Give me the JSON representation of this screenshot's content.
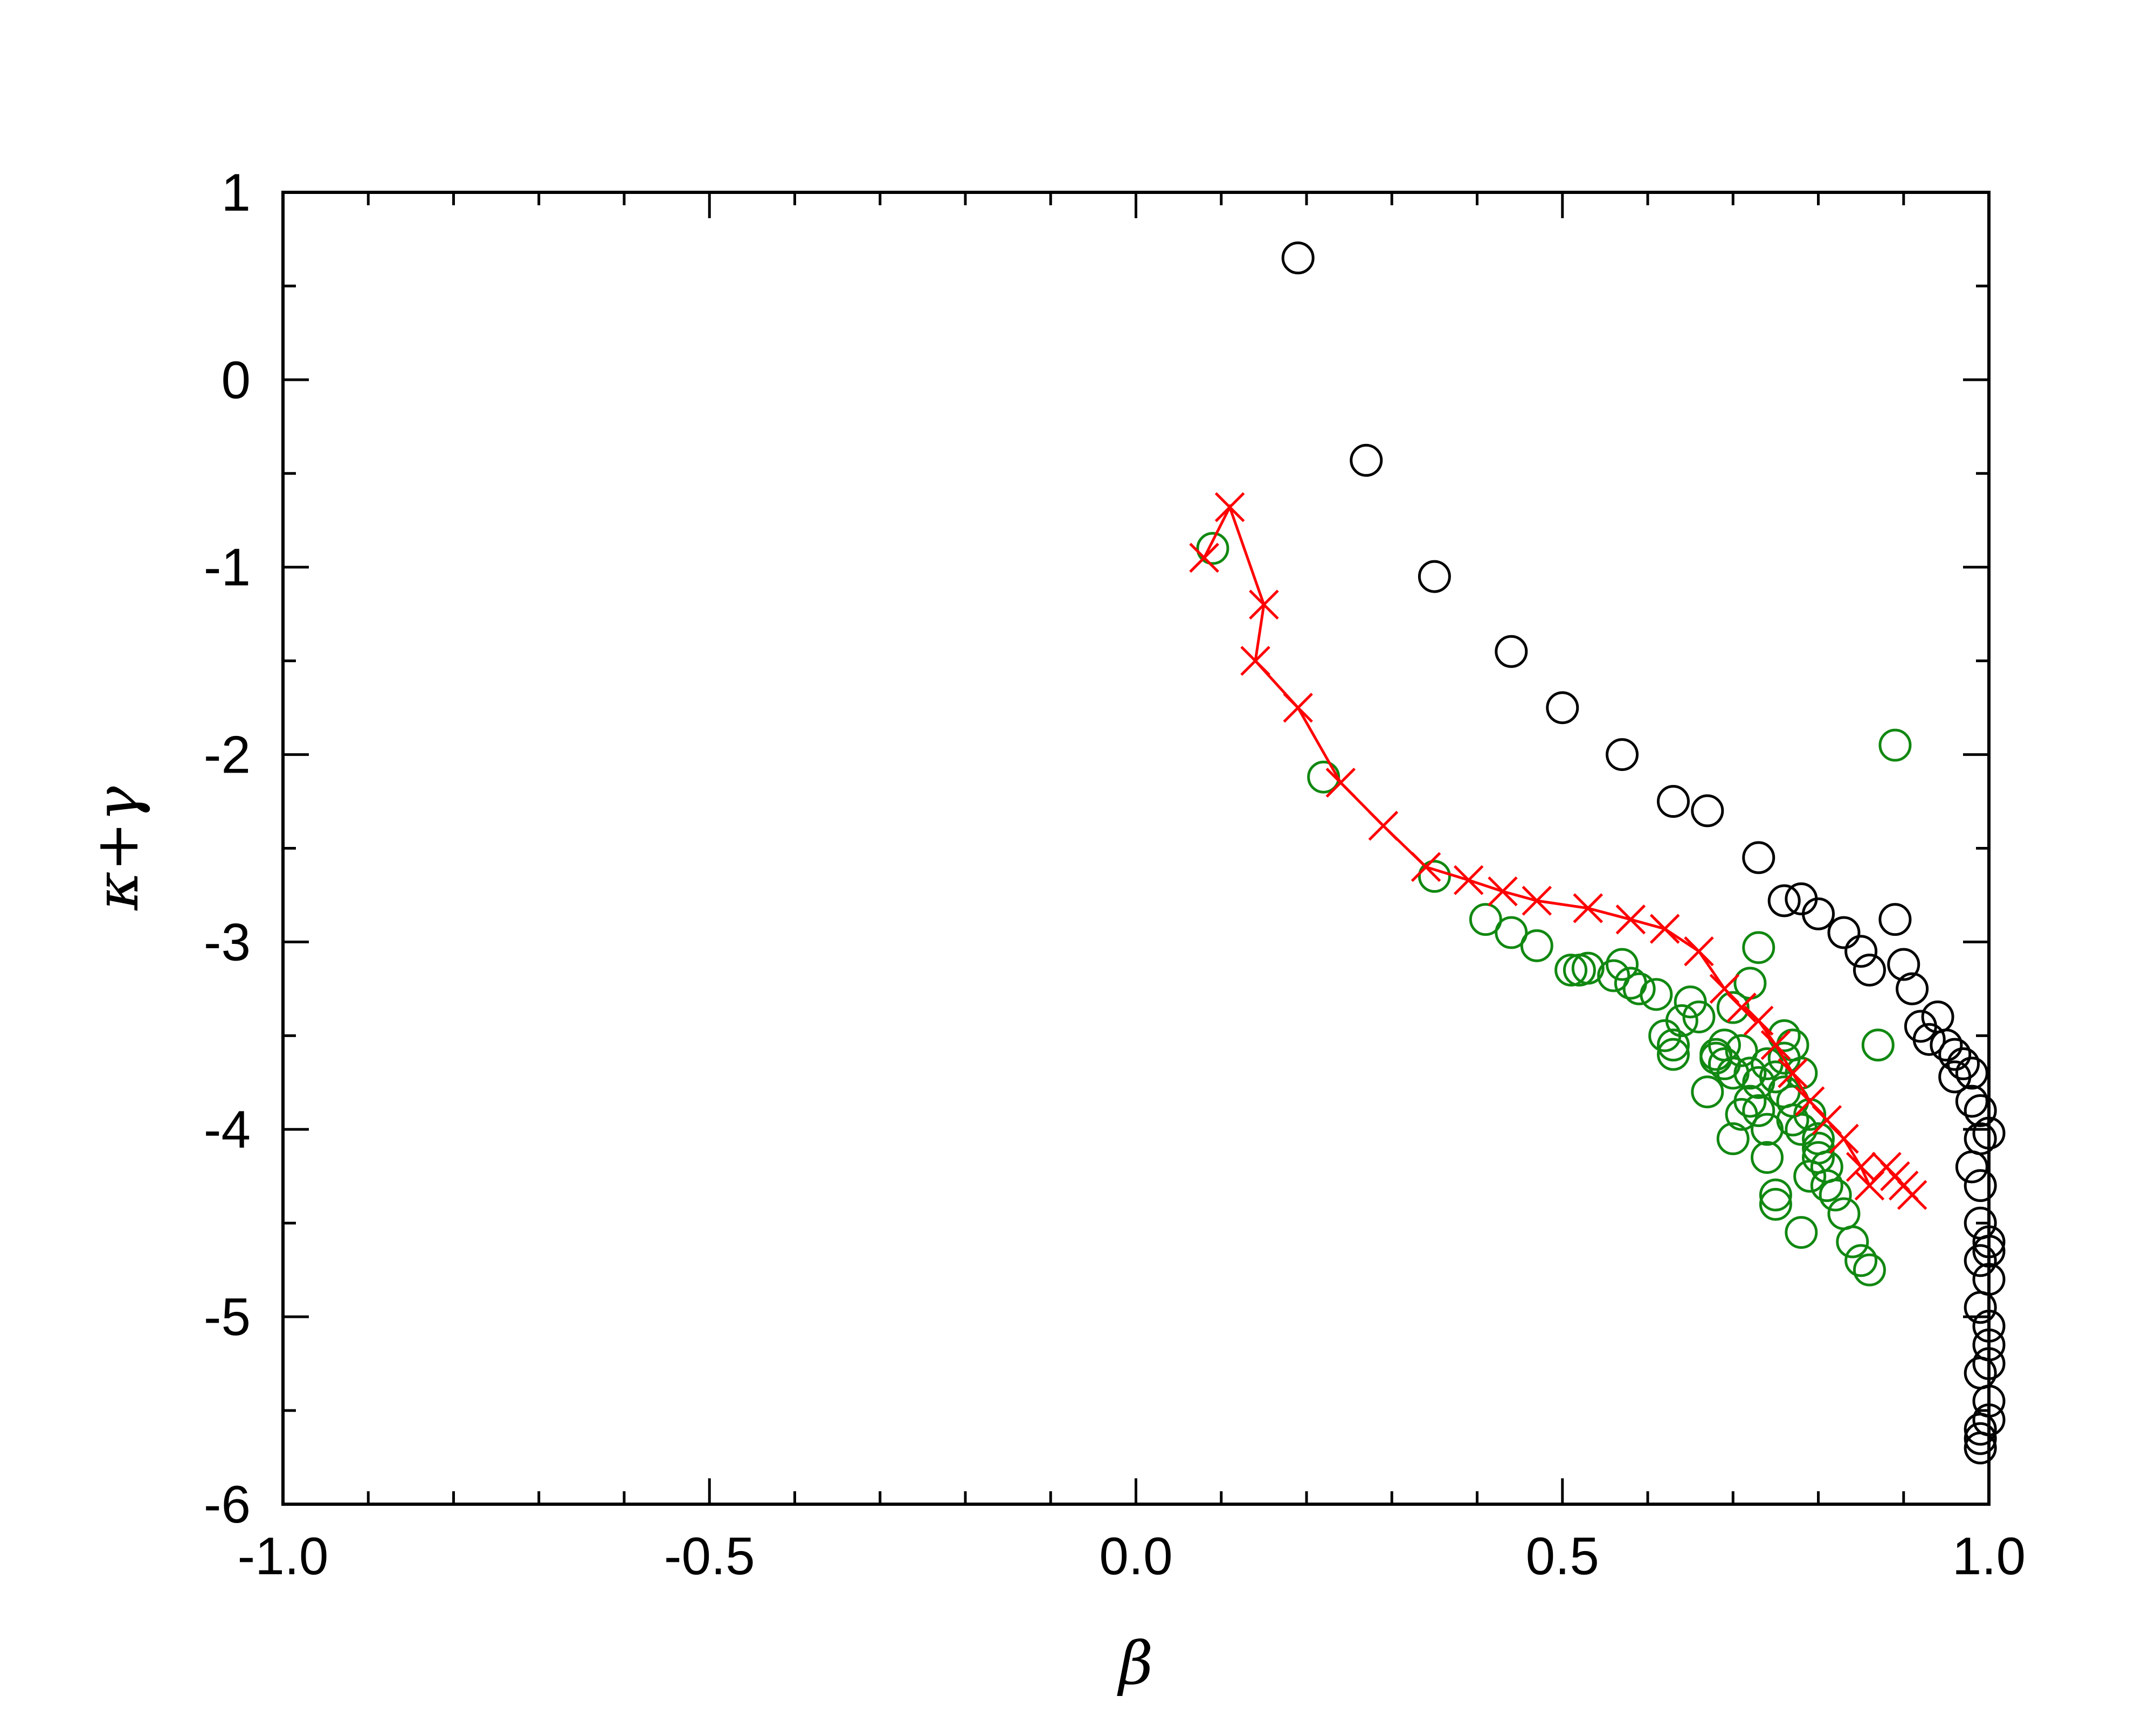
{
  "chart_data": {
    "type": "scatter",
    "title": "",
    "xlabel": "β",
    "ylabel": "κ+γ",
    "xlim": [
      -1.0,
      1.0
    ],
    "ylim": [
      -6,
      1
    ],
    "xticks": [
      -1.0,
      -0.5,
      0.0,
      0.5,
      1.0
    ],
    "xtick_labels": [
      "-1.0",
      "-0.5",
      "0.0",
      "0.5",
      "1.0"
    ],
    "yticks": [
      1,
      0,
      -1,
      -2,
      -3,
      -4,
      -5,
      -6
    ],
    "ytick_labels": [
      "1",
      "0",
      "-1",
      "-2",
      "-3",
      "-4",
      "-5",
      "-6"
    ],
    "x_minor_step": 0.1,
    "y_minor_step": 0.5,
    "grid": false,
    "legend": "none",
    "series": [
      {
        "marker": "circle",
        "color": "#000000",
        "line": false,
        "x": [
          0.19,
          0.27,
          0.35,
          0.44,
          0.5,
          0.57,
          0.63,
          0.67,
          0.73,
          0.76,
          0.78,
          0.8,
          0.83,
          0.85,
          0.86,
          0.89,
          0.9,
          0.91,
          0.92,
          0.94,
          0.93,
          0.95,
          0.96,
          0.97,
          0.96,
          0.98,
          0.98,
          0.99,
          0.99,
          0.98,
          0.99,
          0.99,
          1.0,
          0.99,
          1.0,
          1.0,
          0.99,
          1.0,
          1.0,
          1.0,
          0.99,
          1.0,
          1.0,
          0.99,
          0.99,
          0.99,
          1.0
        ],
        "y": [
          0.65,
          -0.43,
          -1.05,
          -1.45,
          -1.75,
          -2.0,
          -2.25,
          -2.3,
          -2.55,
          -2.78,
          -2.77,
          -2.85,
          -2.95,
          -3.05,
          -3.15,
          -2.88,
          -3.12,
          -3.25,
          -3.45,
          -3.4,
          -3.52,
          -3.55,
          -3.6,
          -3.65,
          -3.72,
          -3.7,
          -3.85,
          -3.9,
          -4.05,
          -4.2,
          -4.3,
          -4.5,
          -4.6,
          -4.7,
          -4.65,
          -4.8,
          -4.95,
          -5.05,
          -5.15,
          -5.25,
          -5.3,
          -5.45,
          -5.55,
          -5.6,
          -5.65,
          -5.7,
          -4.02
        ]
      },
      {
        "marker": "circle",
        "color": "#118811",
        "line": false,
        "x": [
          0.09,
          0.22,
          0.35,
          0.41,
          0.44,
          0.47,
          0.51,
          0.52,
          0.53,
          0.56,
          0.57,
          0.58,
          0.59,
          0.61,
          0.62,
          0.63,
          0.63,
          0.64,
          0.65,
          0.66,
          0.67,
          0.68,
          0.68,
          0.69,
          0.69,
          0.7,
          0.7,
          0.71,
          0.71,
          0.72,
          0.72,
          0.73,
          0.73,
          0.74,
          0.74,
          0.75,
          0.75,
          0.76,
          0.76,
          0.77,
          0.77,
          0.78,
          0.78,
          0.79,
          0.79,
          0.8,
          0.8,
          0.81,
          0.81,
          0.82,
          0.83,
          0.84,
          0.85,
          0.86,
          0.87,
          0.89,
          0.73,
          0.72,
          0.75,
          0.78,
          0.74,
          0.77,
          0.8,
          0.7,
          0.76
        ],
        "y": [
          -0.9,
          -2.12,
          -2.65,
          -2.88,
          -2.95,
          -3.02,
          -3.15,
          -3.15,
          -3.14,
          -3.18,
          -3.12,
          -3.22,
          -3.25,
          -3.28,
          -3.5,
          -3.55,
          -3.6,
          -3.42,
          -3.32,
          -3.4,
          -3.8,
          -3.62,
          -3.6,
          -3.55,
          -3.65,
          -3.7,
          -4.05,
          -3.58,
          -3.92,
          -3.7,
          -3.85,
          -3.75,
          -3.9,
          -3.65,
          -4.15,
          -3.72,
          -4.35,
          -3.62,
          -3.8,
          -3.55,
          -3.95,
          -4.0,
          -4.55,
          -3.92,
          -4.25,
          -4.05,
          -4.15,
          -4.2,
          -4.3,
          -4.35,
          -4.45,
          -4.6,
          -4.7,
          -4.75,
          -3.55,
          -1.95,
          -3.03,
          -3.22,
          -4.4,
          -3.7,
          -4.0,
          -3.85,
          -4.1,
          -3.35,
          -3.5
        ]
      },
      {
        "marker": "x",
        "color": "#ff0000",
        "line": true,
        "x": [
          0.08,
          0.11,
          0.15,
          0.14,
          0.19,
          0.24,
          0.29,
          0.34,
          0.39,
          0.43,
          0.47,
          0.53,
          0.58,
          0.62,
          0.66,
          0.69,
          0.71,
          0.73,
          0.75,
          0.77,
          0.79,
          0.81,
          0.83,
          0.85,
          0.86,
          0.88,
          0.89,
          0.9,
          0.91
        ],
        "y": [
          -0.95,
          -0.68,
          -1.2,
          -1.5,
          -1.75,
          -2.15,
          -2.38,
          -2.6,
          -2.67,
          -2.73,
          -2.78,
          -2.82,
          -2.88,
          -2.93,
          -3.05,
          -3.25,
          -3.35,
          -3.42,
          -3.55,
          -3.7,
          -3.85,
          -3.95,
          -4.05,
          -4.2,
          -4.3,
          -4.2,
          -4.25,
          -4.3,
          -4.35
        ]
      }
    ]
  }
}
